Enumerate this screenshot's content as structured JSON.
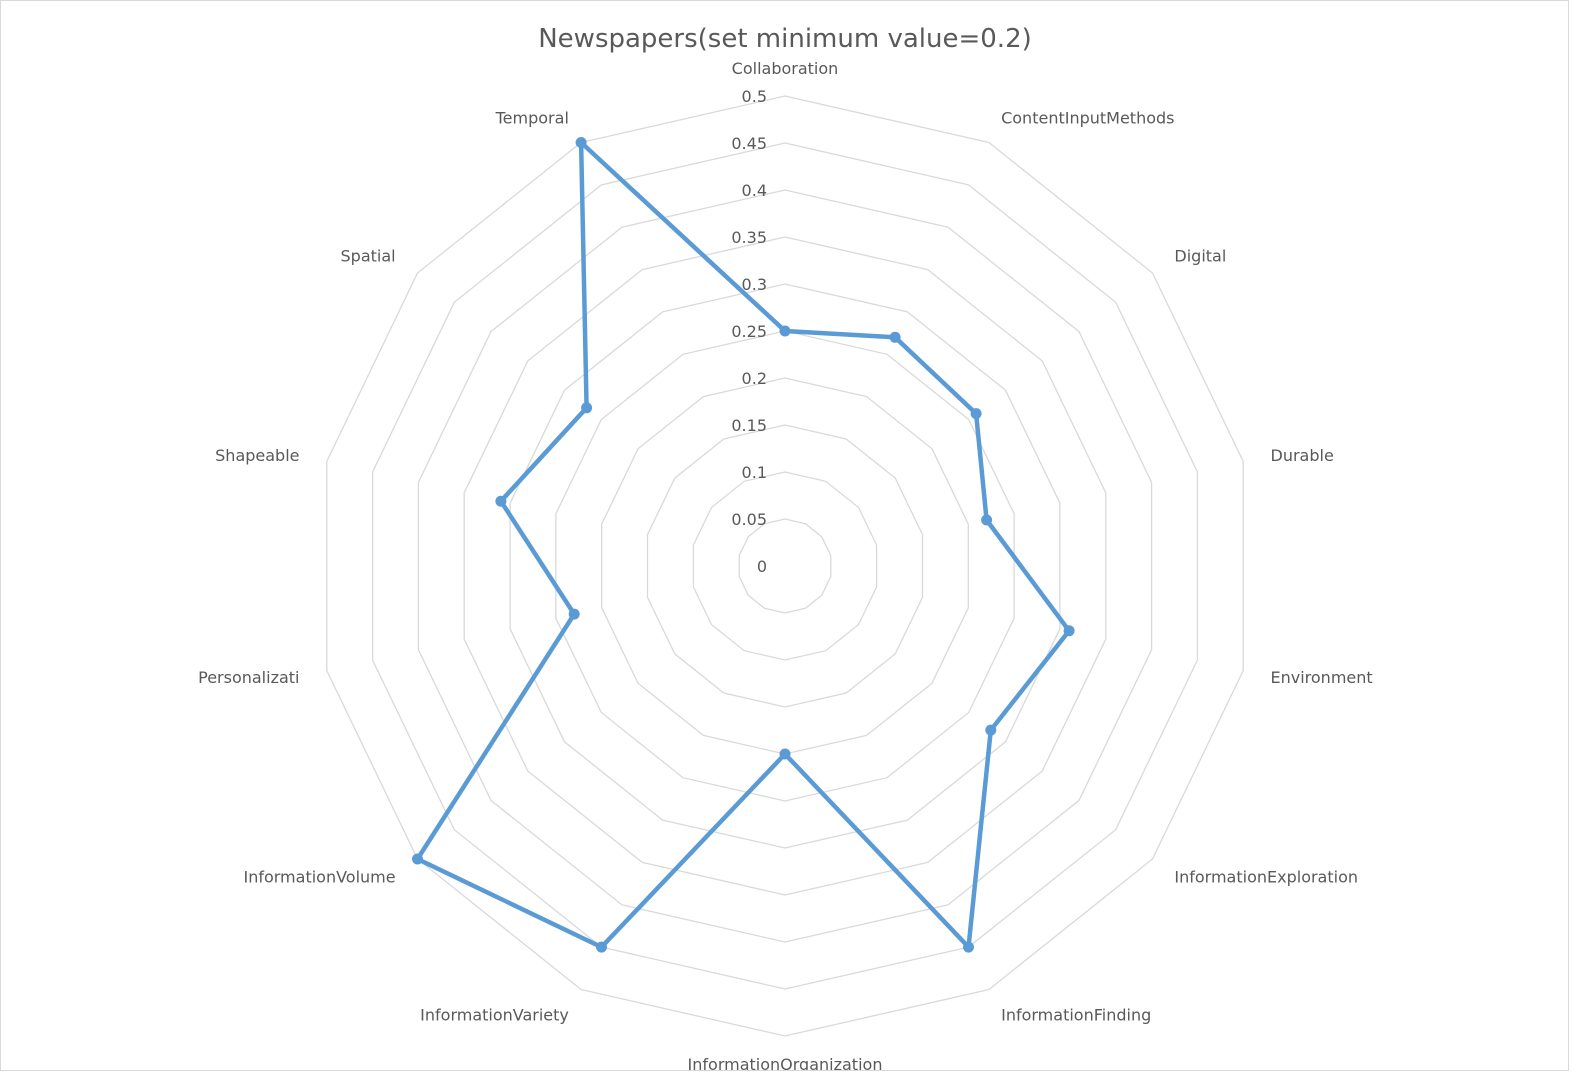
{
  "chart_data": {
    "type": "radar",
    "title": "Newspapers(set minimum value=0.2)",
    "categories": [
      "Collaboration",
      "ContentInputMethods",
      "Digital",
      "Durable",
      "Environment",
      "InformationExploration",
      "InformationFinding",
      "InformationOrganization",
      "InformationVariety",
      "InformationVolume",
      "Personalizati",
      "Shapeable",
      "Spatial",
      "Temporal"
    ],
    "series": [
      {
        "values": [
          0.25,
          0.27,
          0.26,
          0.22,
          0.31,
          0.28,
          0.45,
          0.2,
          0.45,
          0.5,
          0.23,
          0.31,
          0.27,
          0.5
        ]
      }
    ],
    "rlim": [
      0,
      0.5
    ],
    "ticks": [
      "0",
      "0.05",
      "0.1",
      "0.15",
      "0.2",
      "0.25",
      "0.3",
      "0.35",
      "0.4",
      "0.45",
      "0.5"
    ],
    "grid": true,
    "colors": {
      "series": "#5b9bd5",
      "grid": "#d9d9d9",
      "text": "#595959"
    }
  }
}
